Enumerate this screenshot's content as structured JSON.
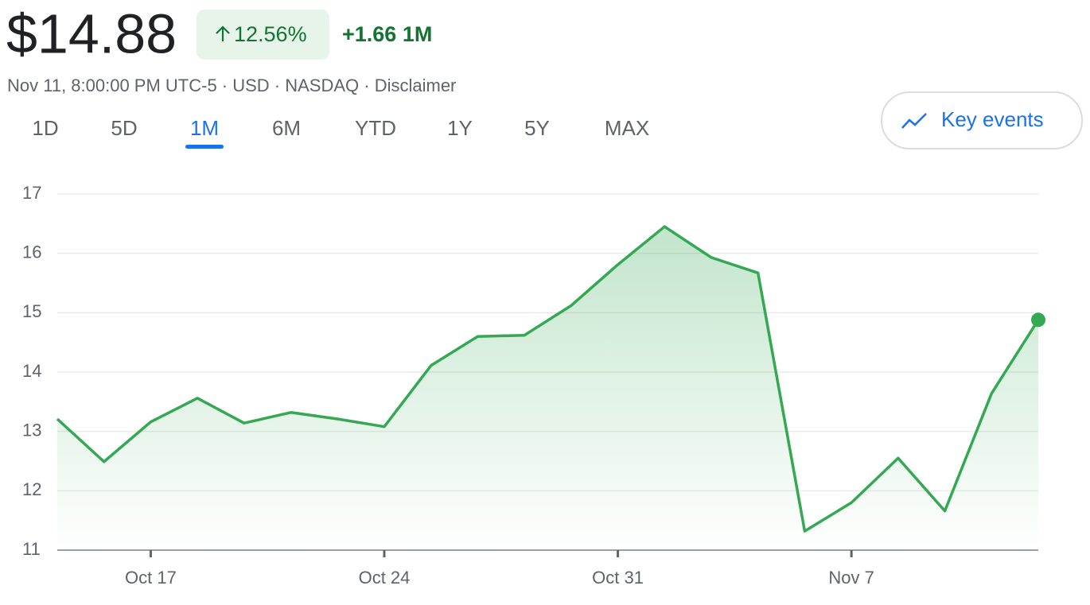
{
  "header": {
    "price": "$14.88",
    "change_percent": "12.56%",
    "change_value": "+1.66 1M",
    "info": "Nov 11, 8:00:00 PM UTC-5 · USD · NASDAQ · Disclaimer"
  },
  "tabs": {
    "items": [
      "1D",
      "5D",
      "1M",
      "6M",
      "YTD",
      "1Y",
      "5Y",
      "MAX"
    ],
    "selected": "1M"
  },
  "key_events": "Key events",
  "chart_data": {
    "type": "area",
    "color": "#34a853",
    "categories": [
      null,
      null,
      "Oct 17",
      null,
      null,
      null,
      null,
      "Oct 24",
      null,
      null,
      null,
      null,
      "Oct 31",
      null,
      null,
      null,
      null,
      "Nov 7",
      null,
      null,
      null,
      null
    ],
    "values": [
      13.21,
      12.49,
      13.16,
      13.56,
      13.14,
      13.32,
      13.21,
      13.08,
      14.11,
      14.6,
      14.62,
      15.12,
      15.81,
      16.45,
      15.93,
      15.67,
      11.32,
      11.8,
      12.55,
      11.66,
      13.64,
      14.88
    ],
    "ylim": [
      11,
      17
    ],
    "yticks": [
      11,
      12,
      13,
      14,
      15,
      16,
      17
    ],
    "grid": true
  }
}
